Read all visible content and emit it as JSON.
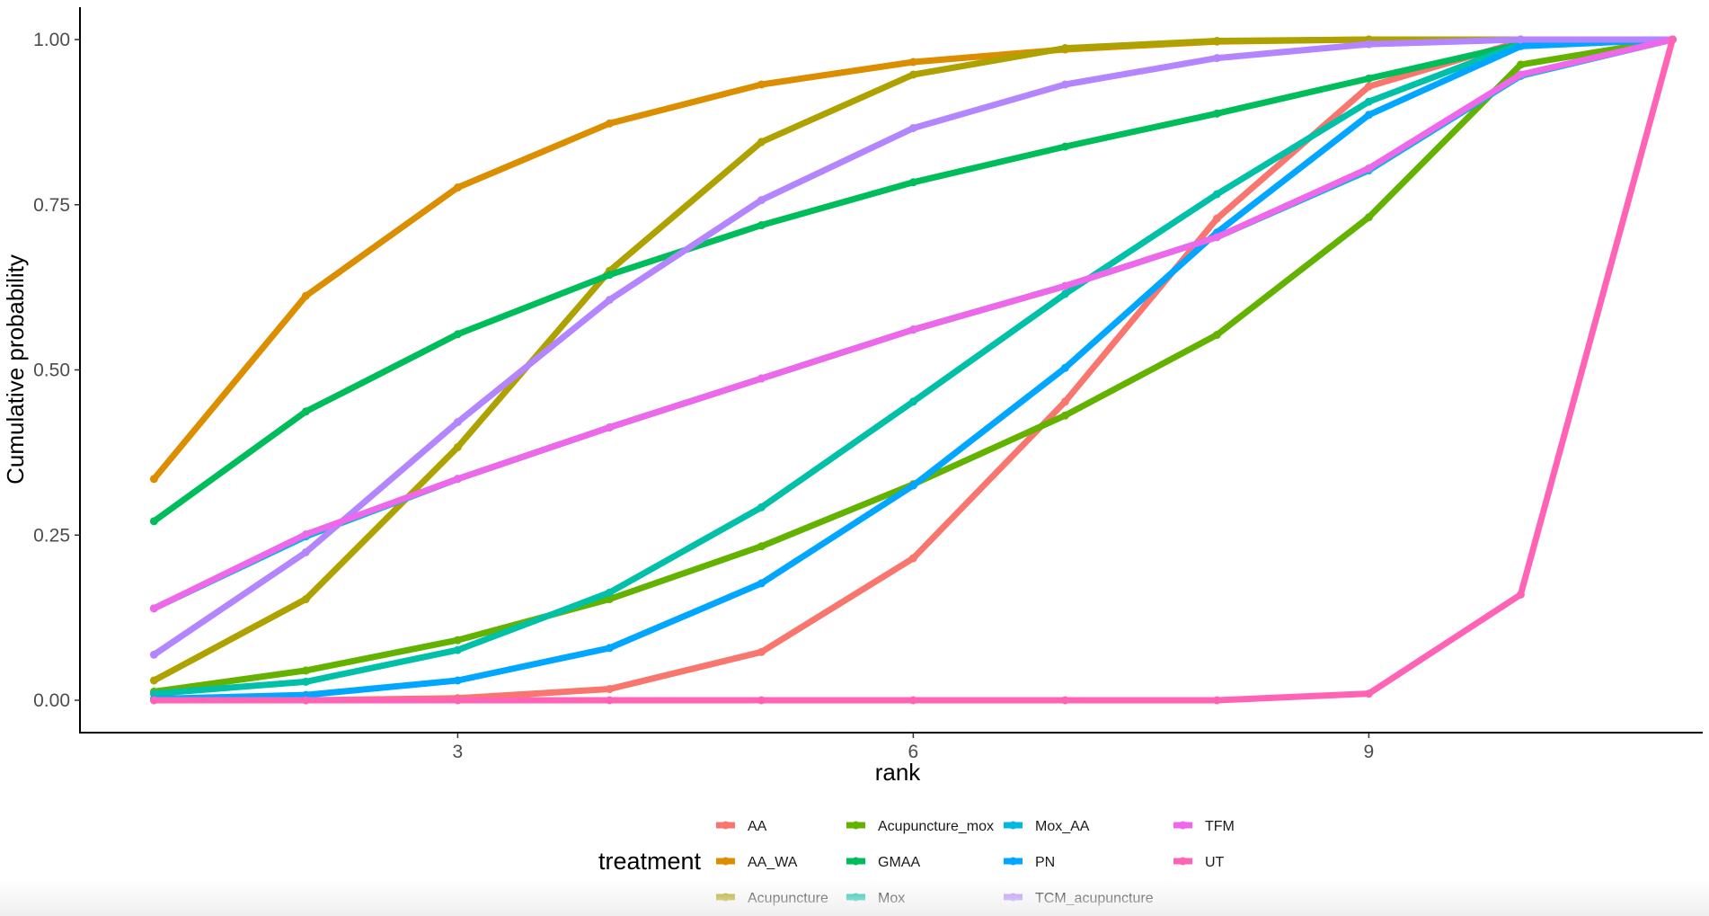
{
  "chart_data": {
    "type": "line",
    "title": "",
    "xlabel": "rank",
    "ylabel": "Cumulative probability",
    "x": [
      1,
      2,
      3,
      4,
      5,
      6,
      7,
      8,
      9,
      10,
      11
    ],
    "xticks": [
      "3",
      "6",
      "9"
    ],
    "xtick_values": [
      3,
      6,
      9
    ],
    "yticks": [
      "0.00",
      "0.25",
      "0.50",
      "0.75",
      "1.00"
    ],
    "ytick_values": [
      0,
      0.25,
      0.5,
      0.75,
      1.0
    ],
    "xlim": [
      0.55,
      11.2
    ],
    "ylim": [
      -0.05,
      1.05
    ],
    "grid": false,
    "legend": {
      "title": "treatment",
      "position": "bottom"
    },
    "series": [
      {
        "name": "AA",
        "color": "#F8766D",
        "values": [
          0.0,
          0.0,
          0.003,
          0.017,
          0.073,
          0.215,
          0.452,
          0.729,
          0.929,
          0.997,
          1.0
        ]
      },
      {
        "name": "AA_WA",
        "color": "#DB8E00",
        "values": [
          0.335,
          0.612,
          0.776,
          0.873,
          0.932,
          0.966,
          0.985,
          0.997,
          1.0,
          1.0,
          1.0
        ]
      },
      {
        "name": "Acupuncture",
        "color": "#AEA200",
        "values": [
          0.03,
          0.153,
          0.383,
          0.65,
          0.845,
          0.947,
          0.987,
          0.998,
          1.0,
          1.0,
          1.0
        ]
      },
      {
        "name": "Acupuncture_mox",
        "color": "#64B200",
        "values": [
          0.013,
          0.045,
          0.091,
          0.153,
          0.233,
          0.327,
          0.431,
          0.553,
          0.731,
          0.962,
          1.0
        ]
      },
      {
        "name": "GMAA",
        "color": "#00BD5C",
        "values": [
          0.271,
          0.437,
          0.554,
          0.644,
          0.719,
          0.784,
          0.838,
          0.888,
          0.941,
          0.993,
          1.0
        ]
      },
      {
        "name": "Mox",
        "color": "#00C1A7",
        "values": [
          0.01,
          0.028,
          0.076,
          0.163,
          0.292,
          0.452,
          0.615,
          0.766,
          0.906,
          0.993,
          1.0
        ]
      },
      {
        "name": "Mox_AA",
        "color": "#00BADE",
        "values": [
          0.139,
          0.248,
          0.335,
          0.413,
          0.487,
          0.561,
          0.627,
          0.701,
          0.802,
          0.945,
          1.0
        ]
      },
      {
        "name": "PN",
        "color": "#00A6FF",
        "values": [
          0.002,
          0.008,
          0.03,
          0.079,
          0.177,
          0.325,
          0.503,
          0.708,
          0.886,
          0.99,
          1.0
        ]
      },
      {
        "name": "TCM_acupuncture",
        "color": "#B385FF",
        "values": [
          0.069,
          0.224,
          0.421,
          0.606,
          0.757,
          0.866,
          0.932,
          0.972,
          0.993,
          1.0,
          1.0
        ]
      },
      {
        "name": "TFM",
        "color": "#EF67EB",
        "values": [
          0.139,
          0.251,
          0.335,
          0.413,
          0.487,
          0.561,
          0.627,
          0.701,
          0.805,
          0.947,
          1.0
        ]
      },
      {
        "name": "UT",
        "color": "#FF63B6",
        "values": [
          0.0,
          0.0,
          0.0,
          0.0,
          0.0,
          0.0,
          0.0,
          0.0,
          0.01,
          0.16,
          1.0
        ]
      }
    ]
  },
  "axes": {
    "x_title": "rank",
    "y_title": "Cumulative probability"
  },
  "legend": {
    "title": "treatment",
    "columns": [
      [
        "AA",
        "AA_WA",
        "Acupuncture"
      ],
      [
        "Acupuncture_mox",
        "GMAA",
        "Mox"
      ],
      [
        "Mox_AA",
        "PN",
        "TCM_acupuncture"
      ],
      [
        "TFM",
        "UT"
      ]
    ]
  }
}
